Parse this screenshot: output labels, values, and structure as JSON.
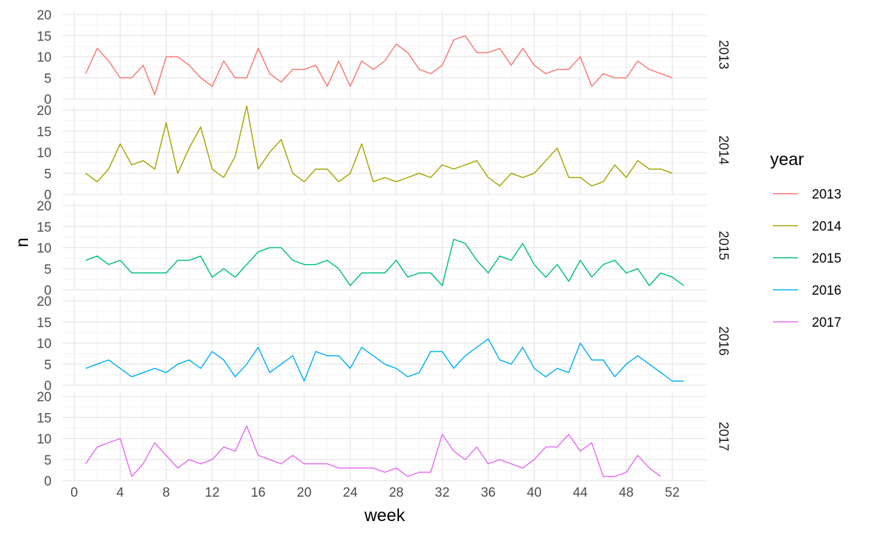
{
  "chart_data": {
    "type": "line",
    "xlabel": "week",
    "ylabel": "n",
    "xlim": [
      -1,
      55
    ],
    "ylim": [
      0,
      21
    ],
    "x_ticks": [
      0,
      4,
      8,
      12,
      16,
      20,
      24,
      28,
      32,
      36,
      40,
      44,
      48,
      52
    ],
    "y_ticks": [
      0,
      5,
      10,
      15,
      20
    ],
    "grid": true,
    "legend": {
      "title": "year",
      "position": "right"
    },
    "facets": "year",
    "series": [
      {
        "name": "2013",
        "color": "#F8766D",
        "x": [
          1,
          2,
          3,
          4,
          5,
          6,
          7,
          8,
          9,
          10,
          11,
          12,
          13,
          14,
          15,
          16,
          17,
          18,
          19,
          20,
          21,
          22,
          23,
          24,
          25,
          26,
          27,
          28,
          29,
          30,
          31,
          32,
          33,
          34,
          35,
          36,
          37,
          38,
          39,
          40,
          41,
          42,
          43,
          44,
          45,
          46,
          47,
          48,
          49,
          50,
          51,
          52
        ],
        "values": [
          6,
          12,
          9,
          5,
          5,
          8,
          1,
          10,
          10,
          8,
          5,
          3,
          9,
          5,
          5,
          12,
          6,
          4,
          7,
          7,
          8,
          3,
          9,
          3,
          9,
          7,
          9,
          13,
          11,
          7,
          6,
          8,
          14,
          15,
          11,
          11,
          12,
          8,
          12,
          8,
          6,
          7,
          7,
          10,
          3,
          6,
          5,
          5,
          9,
          7,
          6,
          5
        ]
      },
      {
        "name": "2014",
        "color": "#A3A500",
        "x": [
          1,
          2,
          3,
          4,
          5,
          6,
          7,
          8,
          9,
          10,
          11,
          12,
          13,
          14,
          15,
          16,
          17,
          18,
          19,
          20,
          21,
          22,
          23,
          24,
          25,
          26,
          27,
          28,
          29,
          30,
          31,
          32,
          33,
          34,
          35,
          36,
          37,
          38,
          39,
          40,
          41,
          42,
          43,
          44,
          45,
          46,
          47,
          48,
          49,
          50,
          51,
          52
        ],
        "values": [
          5,
          3,
          6,
          12,
          7,
          8,
          6,
          17,
          5,
          11,
          16,
          6,
          4,
          9,
          21,
          6,
          10,
          13,
          5,
          3,
          6,
          6,
          3,
          5,
          12,
          3,
          4,
          3,
          4,
          5,
          4,
          7,
          6,
          7,
          8,
          4,
          2,
          5,
          4,
          5,
          8,
          11,
          4,
          4,
          2,
          3,
          7,
          4,
          8,
          6,
          6,
          5
        ]
      },
      {
        "name": "2015",
        "color": "#00BF7D",
        "x": [
          1,
          2,
          3,
          4,
          5,
          6,
          7,
          8,
          9,
          10,
          11,
          12,
          13,
          14,
          15,
          16,
          17,
          18,
          19,
          20,
          21,
          22,
          23,
          24,
          25,
          26,
          27,
          28,
          29,
          30,
          31,
          32,
          33,
          34,
          35,
          36,
          37,
          38,
          39,
          40,
          41,
          42,
          43,
          44,
          45,
          46,
          47,
          48,
          49,
          50,
          51,
          52,
          53
        ],
        "values": [
          7,
          8,
          6,
          7,
          4,
          4,
          4,
          4,
          7,
          7,
          8,
          3,
          5,
          3,
          6,
          9,
          10,
          10,
          7,
          6,
          6,
          7,
          5,
          1,
          4,
          4,
          4,
          7,
          3,
          4,
          4,
          1,
          12,
          11,
          7,
          4,
          8,
          7,
          11,
          6,
          3,
          6,
          2,
          7,
          3,
          6,
          7,
          4,
          5,
          1,
          4,
          3,
          1
        ]
      },
      {
        "name": "2016",
        "color": "#00B0F6",
        "x": [
          1,
          2,
          3,
          4,
          5,
          6,
          7,
          8,
          9,
          10,
          11,
          12,
          13,
          14,
          15,
          16,
          17,
          18,
          19,
          20,
          21,
          22,
          23,
          24,
          25,
          26,
          27,
          28,
          29,
          30,
          31,
          32,
          33,
          34,
          35,
          36,
          37,
          38,
          39,
          40,
          41,
          42,
          43,
          44,
          45,
          46,
          47,
          48,
          49,
          50,
          51,
          52,
          53
        ],
        "values": [
          4,
          5,
          6,
          4,
          2,
          3,
          4,
          3,
          5,
          6,
          4,
          8,
          6,
          2,
          5,
          9,
          3,
          5,
          7,
          1,
          8,
          7,
          7,
          4,
          9,
          7,
          5,
          4,
          2,
          3,
          8,
          8,
          4,
          7,
          9,
          11,
          6,
          5,
          9,
          4,
          2,
          4,
          3,
          10,
          6,
          6,
          2,
          5,
          7,
          5,
          3,
          1,
          1
        ]
      },
      {
        "name": "2017",
        "color": "#E76BF3",
        "x": [
          1,
          2,
          3,
          4,
          5,
          6,
          7,
          8,
          9,
          10,
          11,
          12,
          13,
          14,
          15,
          16,
          17,
          18,
          19,
          20,
          21,
          22,
          23,
          24,
          25,
          26,
          27,
          28,
          29,
          30,
          31,
          32,
          33,
          34,
          35,
          36,
          37,
          38,
          39,
          40,
          41,
          42,
          43,
          44,
          45,
          46,
          47,
          48,
          49,
          50,
          51
        ],
        "values": [
          4,
          8,
          9,
          10,
          1,
          4,
          9,
          6,
          3,
          5,
          4,
          5,
          8,
          7,
          13,
          6,
          5,
          4,
          6,
          4,
          4,
          4,
          3,
          3,
          3,
          3,
          2,
          3,
          1,
          2,
          2,
          11,
          7,
          5,
          8,
          4,
          5,
          4,
          3,
          5,
          8,
          8,
          11,
          7,
          9,
          1,
          1,
          2,
          6,
          3,
          1
        ]
      }
    ]
  }
}
